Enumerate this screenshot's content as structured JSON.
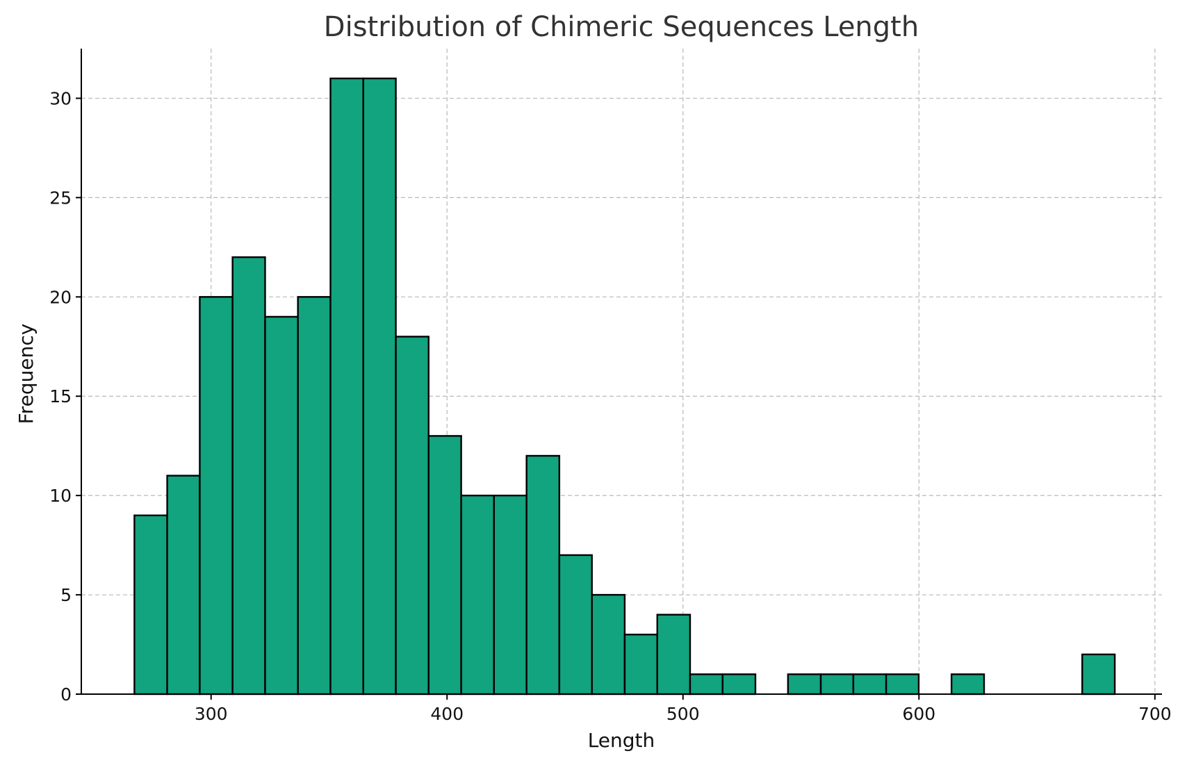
{
  "chart_data": {
    "type": "bar",
    "title": "Distribution of Chimeric Sequences Length",
    "xlabel": "Length",
    "ylabel": "Frequency",
    "xlim": [
      245,
      703
    ],
    "ylim": [
      0,
      32.5
    ],
    "x_ticks": [
      300,
      400,
      500,
      600,
      700
    ],
    "y_ticks": [
      0,
      5,
      10,
      15,
      20,
      25,
      30
    ],
    "grid": true,
    "bar_color": "#12a37f",
    "edge_color": "#000000",
    "bins": [
      {
        "start": 267.5,
        "end": 281.4,
        "count": 9
      },
      {
        "start": 281.4,
        "end": 295.2,
        "count": 11
      },
      {
        "start": 295.2,
        "end": 309.1,
        "count": 20
      },
      {
        "start": 309.1,
        "end": 322.9,
        "count": 22
      },
      {
        "start": 322.9,
        "end": 336.8,
        "count": 19
      },
      {
        "start": 336.8,
        "end": 350.6,
        "count": 20
      },
      {
        "start": 350.6,
        "end": 364.5,
        "count": 31
      },
      {
        "start": 364.5,
        "end": 378.3,
        "count": 31
      },
      {
        "start": 378.3,
        "end": 392.2,
        "count": 18
      },
      {
        "start": 392.2,
        "end": 406.0,
        "count": 13
      },
      {
        "start": 406.0,
        "end": 419.9,
        "count": 10
      },
      {
        "start": 419.9,
        "end": 433.7,
        "count": 10
      },
      {
        "start": 433.7,
        "end": 447.6,
        "count": 12
      },
      {
        "start": 447.6,
        "end": 461.4,
        "count": 7
      },
      {
        "start": 461.4,
        "end": 475.3,
        "count": 5
      },
      {
        "start": 475.3,
        "end": 489.1,
        "count": 3
      },
      {
        "start": 489.1,
        "end": 503.0,
        "count": 4
      },
      {
        "start": 503.0,
        "end": 516.8,
        "count": 1
      },
      {
        "start": 516.8,
        "end": 530.7,
        "count": 1
      },
      {
        "start": 530.7,
        "end": 544.5,
        "count": 0
      },
      {
        "start": 544.5,
        "end": 558.4,
        "count": 1
      },
      {
        "start": 558.4,
        "end": 572.2,
        "count": 1
      },
      {
        "start": 572.2,
        "end": 586.1,
        "count": 1
      },
      {
        "start": 586.1,
        "end": 599.9,
        "count": 1
      },
      {
        "start": 599.9,
        "end": 613.8,
        "count": 0
      },
      {
        "start": 613.8,
        "end": 627.6,
        "count": 1
      },
      {
        "start": 627.6,
        "end": 641.5,
        "count": 0
      },
      {
        "start": 641.5,
        "end": 655.3,
        "count": 0
      },
      {
        "start": 655.3,
        "end": 669.2,
        "count": 0
      },
      {
        "start": 669.2,
        "end": 683.0,
        "count": 2
      }
    ]
  }
}
